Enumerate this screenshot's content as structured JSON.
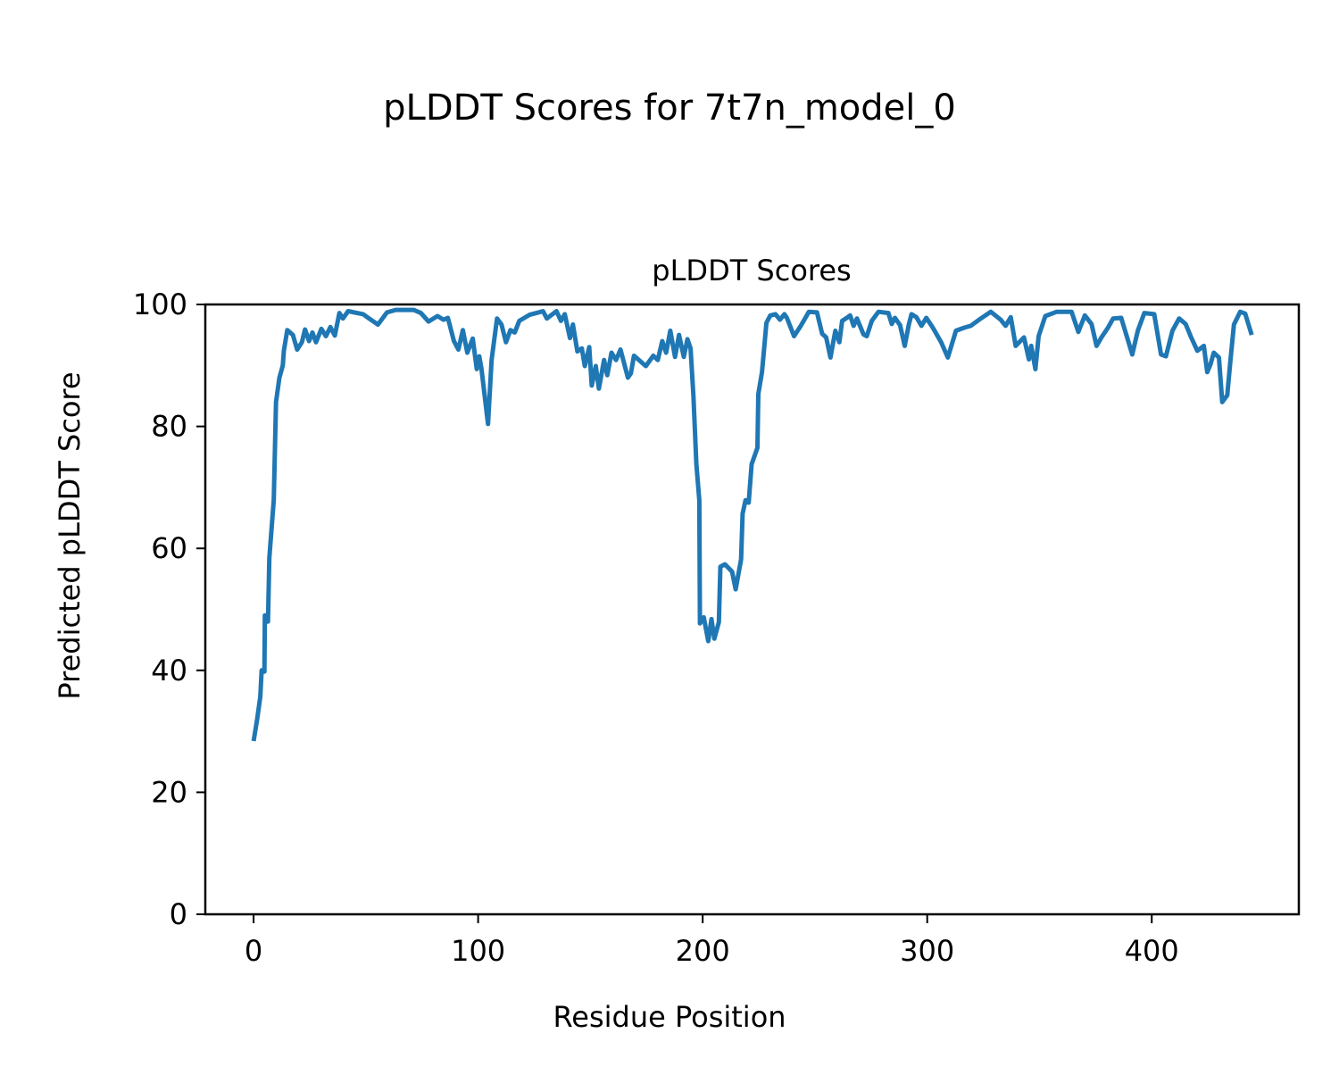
{
  "figure_title": "pLDDT Scores for 7t7n_model_0",
  "chart_data": {
    "type": "line",
    "title": "pLDDT Scores",
    "xlabel": "Residue Position",
    "ylabel": "Predicted pLDDT Score",
    "xlim": [
      -21.5,
      465.5
    ],
    "ylim": [
      0,
      100
    ],
    "xticks": [
      0,
      100,
      200,
      300,
      400
    ],
    "yticks": [
      0,
      20,
      40,
      60,
      80,
      100
    ],
    "grid": false,
    "line_color": "#1f77b4",
    "series": [
      {
        "name": "pLDDT",
        "points": [
          [
            0,
            28.4
          ],
          [
            1.6,
            32
          ],
          [
            3,
            35.7
          ],
          [
            3.6,
            40
          ],
          [
            4.8,
            39.8
          ],
          [
            5,
            49
          ],
          [
            6.4,
            48
          ],
          [
            7,
            58.4
          ],
          [
            9,
            68
          ],
          [
            10,
            84
          ],
          [
            11.5,
            88
          ],
          [
            13,
            90
          ],
          [
            13.5,
            92.4
          ],
          [
            15,
            95.8
          ],
          [
            17.5,
            95
          ],
          [
            19.4,
            92.6
          ],
          [
            21.5,
            93.8
          ],
          [
            22.9,
            95.9
          ],
          [
            24.7,
            94
          ],
          [
            26.2,
            95.4
          ],
          [
            27.8,
            93.8
          ],
          [
            30.2,
            96
          ],
          [
            32.2,
            94.8
          ],
          [
            34.2,
            96.3
          ],
          [
            36.2,
            94.9
          ],
          [
            38.2,
            98.6
          ],
          [
            39.8,
            97.7
          ],
          [
            42.1,
            98.9
          ],
          [
            48.8,
            98.4
          ],
          [
            51.4,
            97.7
          ],
          [
            55.4,
            96.7
          ],
          [
            59.4,
            98.7
          ],
          [
            63.3,
            99.1
          ],
          [
            71.3,
            99.1
          ],
          [
            74.5,
            98.6
          ],
          [
            77.9,
            97.2
          ],
          [
            81.9,
            98.1
          ],
          [
            84.6,
            97.5
          ],
          [
            86.5,
            97.8
          ],
          [
            89.2,
            94
          ],
          [
            91.2,
            92.6
          ],
          [
            93.2,
            95.8
          ],
          [
            95.2,
            92.1
          ],
          [
            97.6,
            94.4
          ],
          [
            99.4,
            89.4
          ],
          [
            100.5,
            91.5
          ],
          [
            101.5,
            89.4
          ],
          [
            104.4,
            80.4
          ],
          [
            106,
            90.9
          ],
          [
            108.4,
            97.7
          ],
          [
            110.4,
            96.7
          ],
          [
            112.4,
            93.8
          ],
          [
            114.4,
            95.8
          ],
          [
            116.3,
            95.4
          ],
          [
            118.3,
            97.3
          ],
          [
            122.9,
            98.3
          ],
          [
            126.9,
            98.7
          ],
          [
            128.9,
            98.9
          ],
          [
            130.6,
            97.7
          ],
          [
            134.9,
            98.9
          ],
          [
            136.9,
            97.3
          ],
          [
            138.6,
            98.4
          ],
          [
            140.9,
            94.5
          ],
          [
            142.2,
            96.7
          ],
          [
            144.2,
            92.3
          ],
          [
            146.2,
            92.8
          ],
          [
            147.5,
            89.9
          ],
          [
            149.5,
            93
          ],
          [
            150.6,
            86.7
          ],
          [
            152.4,
            89.9
          ],
          [
            153.8,
            86.2
          ],
          [
            156.1,
            90.9
          ],
          [
            157.5,
            88.4
          ],
          [
            159.4,
            92.1
          ],
          [
            161.4,
            90.9
          ],
          [
            163.4,
            92.6
          ],
          [
            166.7,
            88
          ],
          [
            168,
            88.7
          ],
          [
            169.4,
            91.6
          ],
          [
            174.7,
            89.9
          ],
          [
            178,
            91.6
          ],
          [
            180,
            90.9
          ],
          [
            182,
            94
          ],
          [
            183.7,
            92.1
          ],
          [
            185.6,
            95.7
          ],
          [
            187.7,
            91.4
          ],
          [
            189.5,
            95
          ],
          [
            191.6,
            91.4
          ],
          [
            193.2,
            94.3
          ],
          [
            194.6,
            92.8
          ],
          [
            195.9,
            85
          ],
          [
            197.2,
            73.8
          ],
          [
            198.5,
            67.9
          ],
          [
            198.8,
            47.7
          ],
          [
            200.5,
            48.7
          ],
          [
            202.5,
            44.8
          ],
          [
            203.9,
            48.4
          ],
          [
            205.2,
            45.2
          ],
          [
            207.2,
            47.9
          ],
          [
            207.9,
            57
          ],
          [
            209.9,
            57.4
          ],
          [
            213.1,
            56.2
          ],
          [
            214.7,
            53.3
          ],
          [
            217.1,
            58.2
          ],
          [
            217.8,
            65.7
          ],
          [
            219.1,
            67.9
          ],
          [
            220.5,
            67.5
          ],
          [
            221.8,
            73.8
          ],
          [
            224.4,
            76.5
          ],
          [
            224.8,
            85.3
          ],
          [
            226.4,
            88.9
          ],
          [
            228.4,
            97
          ],
          [
            230.1,
            98.2
          ],
          [
            232.4,
            98.4
          ],
          [
            234.4,
            97.5
          ],
          [
            236.4,
            98.4
          ],
          [
            237.5,
            97.8
          ],
          [
            240.7,
            94.8
          ],
          [
            243.7,
            96.5
          ],
          [
            247.3,
            98.8
          ],
          [
            250.9,
            98.7
          ],
          [
            253.2,
            95.2
          ],
          [
            255,
            94.6
          ],
          [
            256.9,
            91.3
          ],
          [
            259.1,
            95.7
          ],
          [
            260.9,
            93.8
          ],
          [
            262.1,
            97.3
          ],
          [
            264.2,
            97.8
          ],
          [
            265.7,
            98.2
          ],
          [
            267.2,
            96.5
          ],
          [
            268.7,
            97.7
          ],
          [
            271.6,
            95.1
          ],
          [
            273.1,
            94.8
          ],
          [
            275.3,
            97.3
          ],
          [
            278.3,
            98.8
          ],
          [
            282.7,
            98.6
          ],
          [
            284.2,
            96.8
          ],
          [
            285.6,
            97.8
          ],
          [
            287.9,
            96.6
          ],
          [
            290,
            93.2
          ],
          [
            291.8,
            96.7
          ],
          [
            293,
            98.4
          ],
          [
            295.2,
            97.9
          ],
          [
            297.4,
            96.5
          ],
          [
            299.6,
            97.8
          ],
          [
            302.5,
            96.2
          ],
          [
            306.2,
            93.8
          ],
          [
            309.2,
            91.3
          ],
          [
            312.8,
            95.7
          ],
          [
            316.5,
            96.2
          ],
          [
            319.4,
            96.5
          ],
          [
            323.1,
            97.5
          ],
          [
            328.3,
            98.8
          ],
          [
            332.7,
            97.5
          ],
          [
            334.9,
            96.5
          ],
          [
            337.2,
            97.9
          ],
          [
            339.4,
            93.2
          ],
          [
            343.1,
            94.6
          ],
          [
            345.3,
            91
          ],
          [
            346.3,
            93.2
          ],
          [
            348.2,
            89.4
          ],
          [
            349.6,
            94.8
          ],
          [
            352.6,
            98.1
          ],
          [
            357.7,
            98.8
          ],
          [
            364.3,
            98.8
          ],
          [
            367.3,
            95.5
          ],
          [
            370.2,
            98.2
          ],
          [
            373.2,
            96.8
          ],
          [
            375.4,
            93.2
          ],
          [
            377.6,
            94.6
          ],
          [
            380.5,
            96.2
          ],
          [
            382.8,
            97.7
          ],
          [
            386.4,
            97.8
          ],
          [
            388.6,
            95.1
          ],
          [
            391.3,
            91.8
          ],
          [
            393.8,
            95.7
          ],
          [
            396.7,
            98.6
          ],
          [
            401.1,
            98.4
          ],
          [
            404.1,
            91.8
          ],
          [
            406.3,
            91.5
          ],
          [
            409.2,
            95.7
          ],
          [
            412.2,
            97.7
          ],
          [
            415.1,
            96.8
          ],
          [
            417.3,
            94.8
          ],
          [
            420.3,
            92.4
          ],
          [
            423.2,
            93.2
          ],
          [
            424.7,
            88.9
          ],
          [
            426.2,
            90.2
          ],
          [
            427.6,
            92.1
          ],
          [
            429.9,
            91.3
          ],
          [
            431.4,
            84
          ],
          [
            433.6,
            85.1
          ],
          [
            435.1,
            91
          ],
          [
            436.6,
            96.7
          ],
          [
            439.4,
            98.8
          ],
          [
            441.6,
            98.5
          ],
          [
            444.5,
            95
          ]
        ]
      }
    ]
  }
}
